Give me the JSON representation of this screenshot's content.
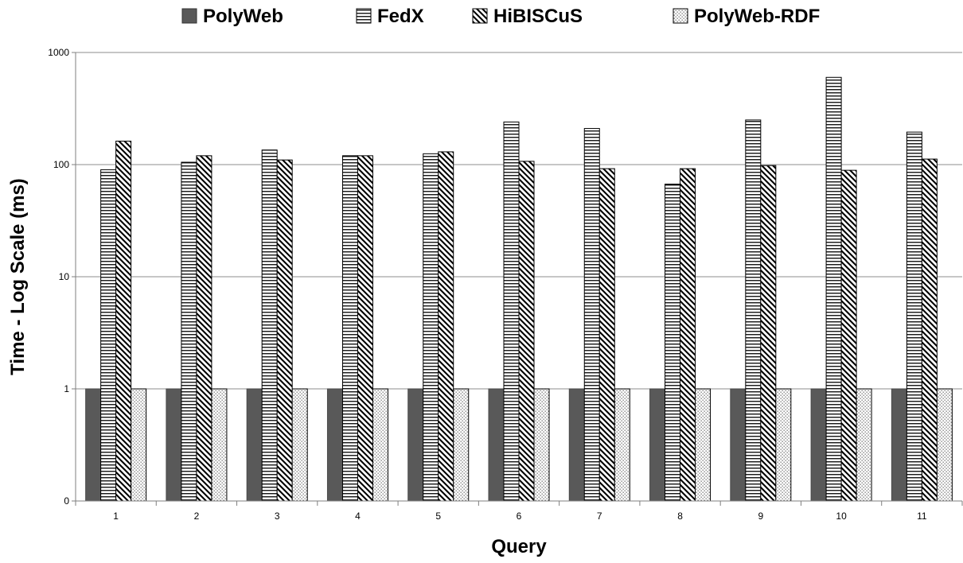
{
  "chart_data": {
    "type": "bar",
    "title": "",
    "xlabel": "Query",
    "ylabel": "Time - Log Scale (ms)",
    "y_scale": "log",
    "ylim": [
      0,
      1000
    ],
    "y_ticks": [
      "0",
      "1",
      "10",
      "100",
      "1000"
    ],
    "grid": true,
    "legend_position": "top",
    "categories": [
      "1",
      "2",
      "3",
      "4",
      "5",
      "6",
      "7",
      "8",
      "9",
      "10",
      "11"
    ],
    "series": [
      {
        "name": "PolyWeb",
        "pattern": "solid",
        "color": "#595959",
        "values": [
          1,
          1,
          1,
          1,
          1,
          1,
          1,
          1,
          1,
          1,
          1
        ]
      },
      {
        "name": "FedX",
        "pattern": "horizontal-lines",
        "color": "#000000",
        "values": [
          90,
          105,
          135,
          120,
          125,
          240,
          210,
          67,
          250,
          600,
          195
        ]
      },
      {
        "name": "HiBISCuS",
        "pattern": "diagonal-lines",
        "color": "#000000",
        "values": [
          162,
          120,
          110,
          120,
          130,
          107,
          92,
          92,
          98,
          89,
          112
        ]
      },
      {
        "name": "PolyWeb-RDF",
        "pattern": "dots",
        "color": "#000000",
        "values": [
          1,
          1,
          1,
          1,
          1,
          1,
          1,
          1,
          1,
          1,
          1
        ]
      }
    ]
  }
}
